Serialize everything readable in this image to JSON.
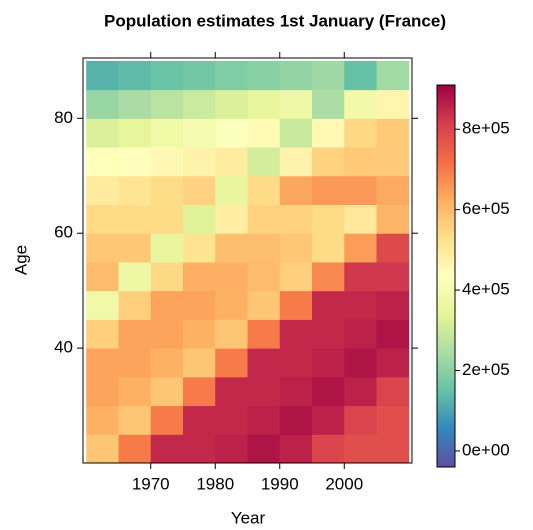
{
  "chart_data": {
    "type": "heatmap",
    "title": "Population estimates 1st January (France)",
    "xlabel": "Year",
    "ylabel": "Age",
    "x": [
      1960,
      1965,
      1970,
      1975,
      1980,
      1985,
      1990,
      1995,
      2000,
      2005,
      2010
    ],
    "y": [
      20,
      25,
      30,
      35,
      40,
      45,
      50,
      55,
      60,
      65,
      70,
      75,
      80,
      85,
      90
    ],
    "xlim": [
      1959.5,
      2010.5
    ],
    "ylim": [
      20,
      90.5
    ],
    "xticks": [
      1970,
      1980,
      1990,
      2000
    ],
    "yticks": [
      40,
      60,
      80
    ],
    "zlim": [
      -40000,
      910000
    ],
    "zticks": [
      {
        "value": 0,
        "label": "0e+00"
      },
      {
        "value": 200000,
        "label": "2e+05"
      },
      {
        "value": 400000,
        "label": "4e+05"
      },
      {
        "value": 600000,
        "label": "6e+05"
      },
      {
        "value": 800000,
        "label": "8e+05"
      }
    ],
    "colorscale": [
      "#5E4FA2",
      "#3288BD",
      "#66C2A5",
      "#ABDDA4",
      "#E6F598",
      "#FFFFBF",
      "#FEE08B",
      "#FDAE61",
      "#F46D43",
      "#D53E4F",
      "#9E0142"
    ],
    "values": [
      [
        580000,
        700000,
        850000,
        850000,
        860000,
        880000,
        860000,
        800000,
        780000,
        780000
      ],
      [
        620000,
        580000,
        700000,
        850000,
        850000,
        860000,
        880000,
        860000,
        800000,
        780000
      ],
      [
        640000,
        620000,
        580000,
        700000,
        850000,
        850000,
        860000,
        880000,
        860000,
        800000
      ],
      [
        640000,
        640000,
        620000,
        580000,
        700000,
        850000,
        850000,
        860000,
        880000,
        860000
      ],
      [
        560000,
        640000,
        640000,
        620000,
        580000,
        700000,
        850000,
        850000,
        860000,
        880000
      ],
      [
        380000,
        560000,
        640000,
        640000,
        620000,
        580000,
        700000,
        850000,
        850000,
        860000
      ],
      [
        601000,
        369000,
        543000,
        621000,
        621000,
        601000,
        563000,
        679000,
        825000,
        825000
      ],
      [
        577000,
        577000,
        353000,
        521000,
        595000,
        595000,
        577000,
        539000,
        651000,
        791000
      ],
      [
        539000,
        539000,
        539000,
        331000,
        487000,
        557000,
        557000,
        539000,
        505000,
        609000
      ],
      [
        496000,
        516000,
        536000,
        556000,
        353000,
        538000,
        635000,
        655000,
        655000,
        631000
      ],
      [
        422000,
        438000,
        455000,
        472000,
        489000,
        310000,
        472000,
        557000,
        575000,
        574000
      ],
      [
        322000,
        348000,
        374000,
        400000,
        425000,
        451000,
        293000,
        454000,
        546000,
        572000
      ],
      [
        217000,
        243000,
        269000,
        295000,
        321000,
        347000,
        373000,
        245000,
        384000,
        466000
      ],
      [
        124000,
        139000,
        154000,
        169000,
        184000,
        198000,
        213000,
        228000,
        149000,
        233000
      ]
    ]
  }
}
